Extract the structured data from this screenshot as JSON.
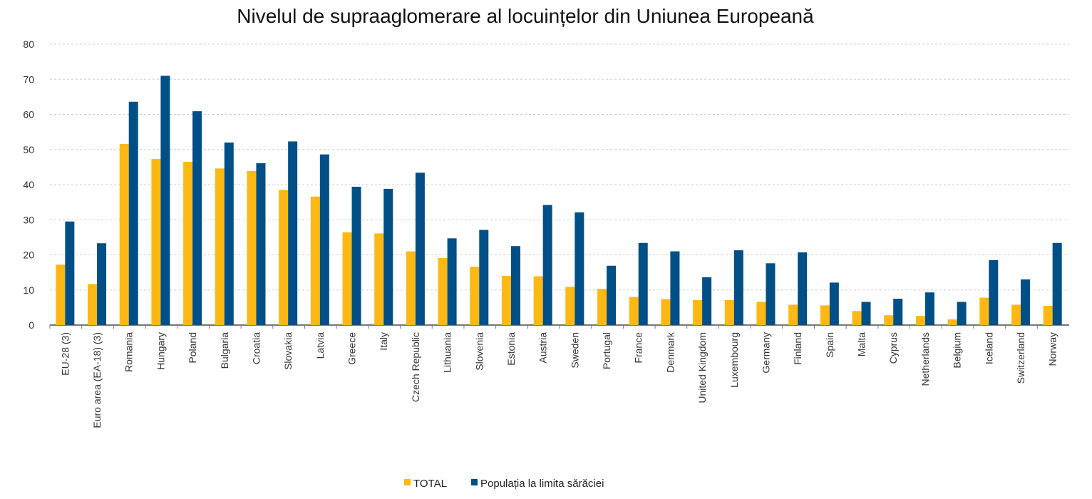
{
  "chart_data": {
    "type": "bar",
    "title": "Nivelul de supraaglomerare al locuințelor din Uniunea Europeană",
    "xlabel": "",
    "ylabel": "",
    "ylim": [
      0,
      80
    ],
    "yticks": [
      0,
      10,
      20,
      30,
      40,
      50,
      60,
      70,
      80
    ],
    "grid": true,
    "legend_position": "bottom-center",
    "categories": [
      "EU-28 (3)",
      "Euro area (EA-18) (3)",
      "Romania",
      "Hungary",
      "Poland",
      "Bulgaria",
      "Croatia",
      "Slovakia",
      "Latvia",
      "Greece",
      "Italy",
      "Czech Republic",
      "Lithuania",
      "Slovenia",
      "Estonia",
      "Austria",
      "Sweden",
      "Portugal",
      "France",
      "Denmark",
      "United Kingdom",
      "Luxembourg",
      "Germany",
      "Finland",
      "Spain",
      "Malta",
      "Cyprus",
      "Netherlands",
      "Belgium",
      "Iceland",
      "Switzerland",
      "Norway"
    ],
    "series": [
      {
        "name": "TOTAL",
        "color": "#FDB813",
        "values": [
          17.2,
          11.7,
          51.6,
          47.3,
          46.5,
          44.6,
          43.9,
          38.5,
          36.6,
          26.4,
          26.1,
          21.0,
          19.1,
          16.6,
          14.0,
          13.9,
          10.9,
          10.3,
          8.0,
          7.4,
          7.1,
          7.1,
          6.6,
          5.8,
          5.6,
          4.0,
          2.8,
          2.6,
          1.6,
          7.8,
          5.8,
          5.5
        ]
      },
      {
        "name": "Populația la limita sărăciei",
        "color": "#004F86",
        "values": [
          29.5,
          23.3,
          63.6,
          71.0,
          60.9,
          52.0,
          46.1,
          52.3,
          48.6,
          39.4,
          38.8,
          43.4,
          24.7,
          27.1,
          22.5,
          34.2,
          32.1,
          16.9,
          23.4,
          21.0,
          13.6,
          21.3,
          17.6,
          20.7,
          12.1,
          6.6,
          7.5,
          9.3,
          6.6,
          18.5,
          13.0,
          23.4
        ]
      }
    ]
  }
}
